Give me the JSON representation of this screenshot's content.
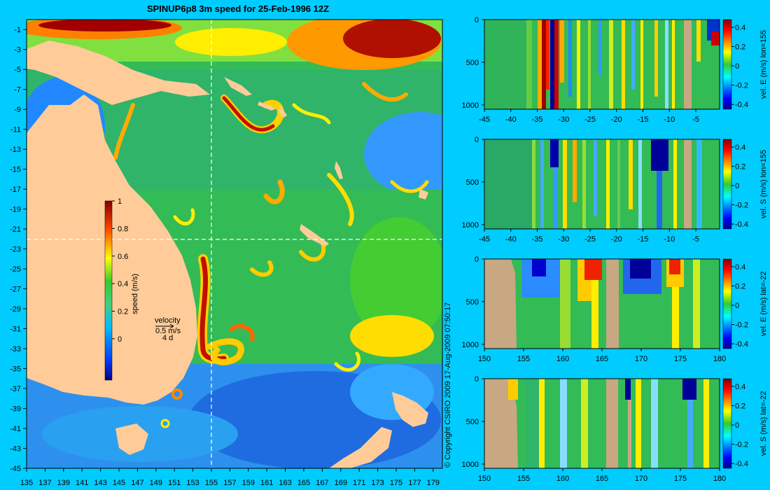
{
  "title": "SPINUP6p8 3m speed for 25-Feb-1996 12Z",
  "copyright": "© Copyright CSIRO 2009   17-Aug-2009 07:50:17",
  "colors": {
    "background": "#00ccff",
    "land": "#ffcc99",
    "section_land": "#c8a882",
    "crosshair": "#ffffff"
  },
  "chart_data": [
    {
      "type": "heatmap",
      "name": "map",
      "title": "SPINUP6p8 3m speed for 25-Feb-1996 12Z",
      "xlabel": "",
      "ylabel": "",
      "x_ticks": [
        135,
        137,
        139,
        141,
        143,
        145,
        147,
        149,
        151,
        153,
        155,
        157,
        159,
        161,
        163,
        165,
        167,
        169,
        171,
        173,
        175,
        177,
        179
      ],
      "y_ticks": [
        -1,
        -3,
        -5,
        -7,
        -9,
        -11,
        -13,
        -15,
        -17,
        -19,
        -21,
        -23,
        -25,
        -27,
        -29,
        -31,
        -33,
        -35,
        -37,
        -39,
        -41,
        -43,
        -45
      ],
      "xlim": [
        135,
        180
      ],
      "ylim": [
        -45,
        0
      ],
      "crosshair": {
        "lon": 155,
        "lat": -22
      },
      "colorbar": {
        "label": "speed (m/s)",
        "ticks": [
          0,
          0.2,
          0.4,
          0.6,
          0.8,
          1
        ],
        "tick_labels": [
          "0",
          "0.2",
          "0.4",
          "0.6",
          "0.8",
          "1"
        ],
        "range": [
          -0.3,
          1
        ]
      },
      "velocity_key": {
        "title": "velocity",
        "speed": "0.5 m/s",
        "duration": "4 d"
      }
    },
    {
      "type": "heatmap",
      "name": "section-east-lon",
      "ylabel": "vel. E (m/s) lon=155",
      "x_ticks": [
        -45,
        -40,
        -35,
        -30,
        -25,
        -20,
        -15,
        -10,
        -5
      ],
      "y_ticks": [
        0,
        500,
        1000
      ],
      "xlim": [
        -45,
        -0.5
      ],
      "ylim": [
        1050,
        0
      ],
      "colorbar": {
        "ticks": [
          -0.4,
          -0.2,
          0,
          0.2,
          0.4
        ],
        "tick_labels": [
          "-0.4",
          "-0.2",
          "0",
          "0.2",
          "0.4"
        ],
        "range": [
          -0.45,
          0.48
        ]
      }
    },
    {
      "type": "heatmap",
      "name": "section-south-lon",
      "ylabel": "vel. S (m/s) lon=155",
      "x_ticks": [
        -45,
        -40,
        -35,
        -30,
        -25,
        -20,
        -15,
        -10,
        -5
      ],
      "y_ticks": [
        0,
        500,
        1000
      ],
      "xlim": [
        -45,
        -0.5
      ],
      "ylim": [
        1050,
        0
      ],
      "colorbar": {
        "ticks": [
          -0.4,
          -0.2,
          0,
          0.2,
          0.4
        ],
        "tick_labels": [
          "-0.4",
          "-0.2",
          "0",
          "0.2",
          "0.4"
        ],
        "range": [
          -0.45,
          0.48
        ]
      }
    },
    {
      "type": "heatmap",
      "name": "section-east-lat",
      "ylabel": "vel. E (m/s) lat=-22",
      "x_ticks": [
        150,
        155,
        160,
        165,
        170,
        175,
        180
      ],
      "y_ticks": [
        0,
        500,
        1000
      ],
      "xlim": [
        150,
        180
      ],
      "ylim": [
        1050,
        0
      ],
      "colorbar": {
        "ticks": [
          -0.4,
          -0.2,
          0,
          0.2,
          0.4
        ],
        "tick_labels": [
          "-0.4",
          "-0.2",
          "0",
          "0.2",
          "0.4"
        ],
        "range": [
          -0.45,
          0.48
        ]
      }
    },
    {
      "type": "heatmap",
      "name": "section-south-lat",
      "ylabel": "vel. S (m/s) lat=-22",
      "x_ticks": [
        150,
        155,
        160,
        165,
        170,
        175,
        180
      ],
      "y_ticks": [
        0,
        500,
        1000
      ],
      "xlim": [
        150,
        180
      ],
      "ylim": [
        1050,
        0
      ],
      "colorbar": {
        "ticks": [
          -0.4,
          -0.2,
          0,
          0.2,
          0.4
        ],
        "tick_labels": [
          "-0.4",
          "-0.2",
          "0",
          "0.2",
          "0.4"
        ],
        "range": [
          -0.45,
          0.48
        ]
      }
    }
  ]
}
